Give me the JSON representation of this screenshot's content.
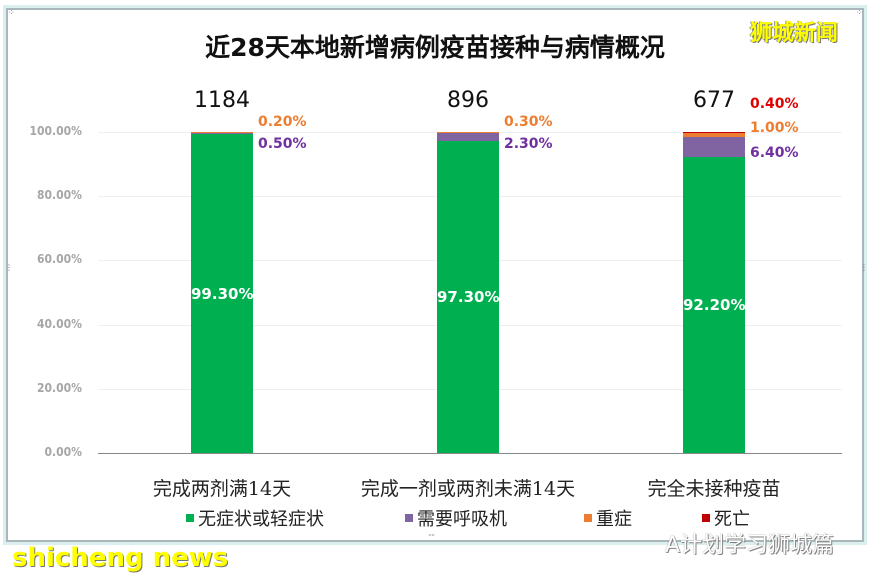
{
  "watermark_brand": "狮城新闻",
  "watermark_bottom_left": "shicheng news",
  "watermark_bottom_right": "A计划学习狮城篇",
  "colors": {
    "asymptomatic": "#00b050",
    "ventilator": "#8064a2",
    "severe": "#ed7d31",
    "death": "#c00000",
    "severe_label": "#ed7d31",
    "death_label": "#e00000",
    "ventilator_label": "#7030a0"
  },
  "chart_data": {
    "type": "bar",
    "stacked": true,
    "percent_stacked": true,
    "title": "近28天本地新增病例疫苗接种与病情概况",
    "xlabel": "",
    "ylabel": "",
    "ylim": [
      0,
      100
    ],
    "y_ticks": [
      "0.00%",
      "20.00%",
      "40.00%",
      "60.00%",
      "80.00%",
      "100.00%"
    ],
    "grid": true,
    "legend_position": "bottom",
    "categories": [
      "完成两剂满14天",
      "完成一剂或两剂未满14天",
      "完全未接种疫苗"
    ],
    "totals": [
      "1184",
      "896",
      "677"
    ],
    "series": [
      {
        "name": "无症状或轻症状",
        "values": [
          99.3,
          97.3,
          92.2
        ],
        "labels": [
          "99.30%",
          "97.30%",
          "92.20%"
        ],
        "color": "#00b050"
      },
      {
        "name": "需要呼吸机",
        "values": [
          0.5,
          2.3,
          6.4
        ],
        "labels": [
          "0.50%",
          "2.30%",
          "6.40%"
        ],
        "color": "#8064a2"
      },
      {
        "name": "重症",
        "values": [
          0.2,
          0.3,
          1.0
        ],
        "labels": [
          "0.20%",
          "0.30%",
          "1.00%"
        ],
        "color": "#ed7d31"
      },
      {
        "name": "死亡",
        "values": [
          0.0,
          0.0,
          0.4
        ],
        "labels": [
          "",
          "",
          "0.40%"
        ],
        "color": "#c00000"
      }
    ]
  }
}
